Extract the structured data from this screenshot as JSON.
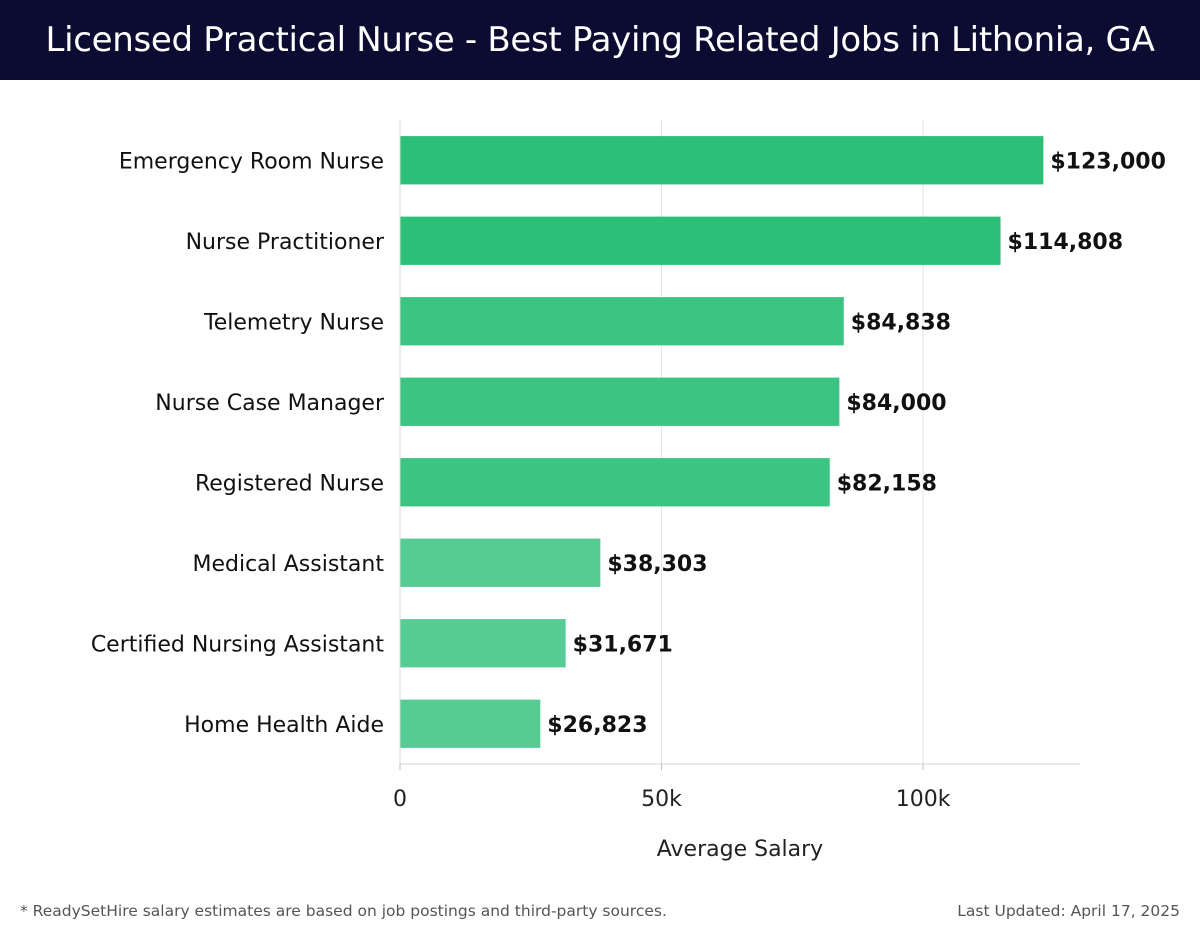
{
  "header": {
    "title": "Licensed Practical Nurse - Best Paying Related Jobs in Lithonia, GA"
  },
  "chart_data": {
    "type": "bar",
    "orientation": "horizontal",
    "categories": [
      "Emergency Room Nurse",
      "Nurse Practitioner",
      "Telemetry Nurse",
      "Nurse Case Manager",
      "Registered Nurse",
      "Medical Assistant",
      "Certified Nursing Assistant",
      "Home Health Aide"
    ],
    "values": [
      123000,
      114808,
      84838,
      84000,
      82158,
      38303,
      31671,
      26823
    ],
    "value_labels": [
      "$123,000",
      "$114,808",
      "$84,838",
      "$84,000",
      "$82,158",
      "$38,303",
      "$31,671",
      "$26,823"
    ],
    "xlabel": "Average Salary",
    "ylabel": "",
    "xlim": [
      0,
      130000
    ],
    "x_ticks": [
      0,
      50000,
      100000
    ],
    "x_tick_labels": [
      "0",
      "50k",
      "100k"
    ],
    "grid": true,
    "bar_colors": [
      "#2bbf78",
      "#2bbf78",
      "#3cc582",
      "#3cc582",
      "#3cc582",
      "#55cc93",
      "#55cc93",
      "#55cc93"
    ]
  },
  "footer": {
    "note": "* ReadySetHire salary estimates are based on job postings and third-party sources.",
    "updated": "Last Updated: April 17, 2025"
  }
}
